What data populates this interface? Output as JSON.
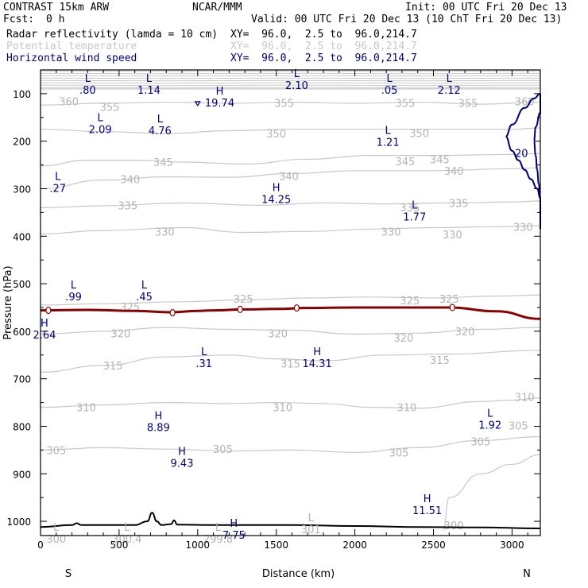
{
  "header": {
    "model": "CONTRAST 15km ARW",
    "org": "NCAR/MMM",
    "init": "Init: 00 UTC Fri 20 Dec 13",
    "fcst_label": "Fcst:",
    "fcst_value": "0 h",
    "valid": "Valid: 00 UTC Fri 20 Dec 13 (10 ChT Fri 20 Dec 13)"
  },
  "legend": [
    {
      "label": "Radar reflectivity (lamda = 10 cm)",
      "xy": "XY=  96.0,  2.5 to  96.0,214.7",
      "color": "#8b0000"
    },
    {
      "label": "Potential temperature",
      "xy": "XY=  96.0,  2.5 to  96.0,214.7",
      "color": "#c8c8c8"
    },
    {
      "label": "Horizontal wind speed",
      "xy": "XY=  96.0,  2.5 to  96.0,214.7",
      "color": "#00007a"
    }
  ],
  "chart_data": {
    "type": "cross-section contour",
    "xlabel": "Distance (km)",
    "ylabel": "Pressure (hPa)",
    "xlim": [
      0,
      3180
    ],
    "ylim": [
      1030,
      50
    ],
    "x_ticks": [
      "0",
      "500",
      "1000",
      "1500",
      "2000",
      "2500",
      "3000"
    ],
    "x_tick_values": [
      0,
      500,
      1000,
      1500,
      2000,
      2500,
      3000
    ],
    "y_ticks": [
      "100",
      "200",
      "300",
      "400",
      "500",
      "600",
      "700",
      "800",
      "900",
      "1000"
    ],
    "y_tick_values": [
      100,
      200,
      300,
      400,
      500,
      600,
      700,
      800,
      900,
      1000
    ],
    "endpoints": {
      "left": "S",
      "right": "N"
    },
    "theta_contours": [
      {
        "label": "360",
        "points": [
          [
            0,
            90
          ],
          [
            3180,
            90
          ]
        ],
        "label_pos": [
          180,
          116
        ]
      },
      {
        "label": "355",
        "points": [
          [
            0,
            124
          ],
          [
            400,
            120
          ],
          [
            800,
            118
          ],
          [
            1200,
            120
          ],
          [
            1600,
            118
          ],
          [
            2000,
            120
          ],
          [
            2400,
            118
          ],
          [
            2800,
            122
          ],
          [
            3180,
            118
          ]
        ],
        "label_pos": [
          440,
          128
        ]
      },
      {
        "label": "350",
        "points": [
          [
            0,
            175
          ],
          [
            400,
            180
          ],
          [
            800,
            184
          ],
          [
            1200,
            178
          ],
          [
            1600,
            175
          ],
          [
            2000,
            175
          ],
          [
            2400,
            175
          ],
          [
            3000,
            175
          ],
          [
            3180,
            172
          ]
        ],
        "label_pos": [
          1500,
          184
        ]
      },
      {
        "label": "345",
        "points": [
          [
            0,
            252
          ],
          [
            300,
            240
          ],
          [
            600,
            240
          ],
          [
            900,
            244
          ],
          [
            1300,
            248
          ],
          [
            1700,
            238
          ],
          [
            2100,
            230
          ],
          [
            2500,
            230
          ],
          [
            3000,
            228
          ],
          [
            3180,
            226
          ]
        ],
        "label_pos": [
          780,
          244
        ]
      },
      {
        "label": "340",
        "points": [
          [
            0,
            300
          ],
          [
            400,
            282
          ],
          [
            800,
            275
          ],
          [
            1200,
            276
          ],
          [
            1600,
            268
          ],
          [
            2000,
            262
          ],
          [
            2500,
            262
          ],
          [
            3000,
            258
          ],
          [
            3180,
            256
          ]
        ],
        "label_pos": [
          570,
          280
        ]
      },
      {
        "label": "335",
        "points": [
          [
            0,
            340
          ],
          [
            400,
            336
          ],
          [
            900,
            330
          ],
          [
            1400,
            335
          ],
          [
            1800,
            330
          ],
          [
            2200,
            332
          ],
          [
            2600,
            330
          ],
          [
            3000,
            328
          ],
          [
            3180,
            326
          ]
        ],
        "label_pos": [
          555,
          335
        ]
      },
      {
        "label": "330",
        "points": [
          [
            0,
            395
          ],
          [
            400,
            388
          ],
          [
            900,
            382
          ],
          [
            1300,
            392
          ],
          [
            1700,
            390
          ],
          [
            2100,
            385
          ],
          [
            2500,
            382
          ],
          [
            2900,
            380
          ],
          [
            3180,
            378
          ]
        ],
        "label_pos": [
          790,
          390
        ]
      },
      {
        "label": "325",
        "points": [
          [
            0,
            545
          ],
          [
            400,
            542
          ],
          [
            900,
            538
          ],
          [
            1300,
            534
          ],
          [
            1700,
            530
          ],
          [
            2100,
            528
          ],
          [
            2500,
            530
          ],
          [
            2900,
            526
          ],
          [
            3180,
            524
          ]
        ],
        "label_pos": [
          1290,
          532
        ]
      },
      {
        "label": "320",
        "points": [
          [
            0,
            606
          ],
          [
            400,
            600
          ],
          [
            800,
            592
          ],
          [
            1200,
            596
          ],
          [
            1600,
            598
          ],
          [
            2000,
            606
          ],
          [
            2400,
            604
          ],
          [
            2800,
            596
          ],
          [
            3180,
            592
          ]
        ],
        "label_pos": [
          510,
          604
        ]
      },
      {
        "label": "315",
        "points": [
          [
            0,
            686
          ],
          [
            400,
            672
          ],
          [
            800,
            654
          ],
          [
            1200,
            650
          ],
          [
            1500,
            658
          ],
          [
            1800,
            662
          ],
          [
            2200,
            650
          ],
          [
            2600,
            648
          ],
          [
            3180,
            640
          ]
        ],
        "label_pos": [
          460,
          672
        ]
      },
      {
        "label": "310",
        "points": [
          [
            0,
            760
          ],
          [
            400,
            755
          ],
          [
            800,
            750
          ],
          [
            1200,
            752
          ],
          [
            1500,
            750
          ],
          [
            1800,
            752
          ],
          [
            2100,
            760
          ],
          [
            2400,
            762
          ],
          [
            2800,
            748
          ],
          [
            3000,
            745
          ],
          [
            3180,
            740
          ]
        ],
        "label_pos": [
          290,
          760
        ]
      },
      {
        "label": "305",
        "points": [
          [
            0,
            850
          ],
          [
            400,
            845
          ],
          [
            800,
            848
          ],
          [
            1200,
            852
          ],
          [
            1600,
            850
          ],
          [
            2000,
            855
          ],
          [
            2400,
            845
          ],
          [
            2800,
            830
          ],
          [
            3180,
            822
          ]
        ],
        "label_pos": [
          100,
          850
        ]
      },
      {
        "label": "300",
        "points": [
          [
            2560,
            1020
          ],
          [
            2600,
            950
          ],
          [
            2800,
            900
          ],
          [
            3000,
            880
          ],
          [
            3180,
            860
          ]
        ],
        "label_pos": [
          2630,
          1008
        ]
      }
    ],
    "theta_extra_labels": [
      {
        "label": "350",
        "pos": [
          2410,
          183
        ]
      },
      {
        "label": "345",
        "pos": [
          2320,
          242
        ]
      },
      {
        "label": "345",
        "pos": [
          2540,
          238
        ]
      },
      {
        "label": "340",
        "pos": [
          1580,
          273
        ]
      },
      {
        "label": "340",
        "pos": [
          2630,
          262
        ]
      },
      {
        "label": "335",
        "pos": [
          2350,
          339
        ]
      },
      {
        "label": "335",
        "pos": [
          2660,
          330
        ]
      },
      {
        "label": "330",
        "pos": [
          2230,
          390
        ]
      },
      {
        "label": "330",
        "pos": [
          2620,
          396
        ]
      },
      {
        "label": "330",
        "pos": [
          3070,
          380
        ]
      },
      {
        "label": "325",
        "pos": [
          570,
          548
        ]
      },
      {
        "label": "325",
        "pos": [
          2350,
          535
        ]
      },
      {
        "label": "325",
        "pos": [
          2600,
          532
        ]
      },
      {
        "label": "320",
        "pos": [
          1510,
          604
        ]
      },
      {
        "label": "320",
        "pos": [
          2310,
          614
        ]
      },
      {
        "label": "320",
        "pos": [
          2700,
          600
        ]
      },
      {
        "label": "315",
        "pos": [
          1590,
          668
        ]
      },
      {
        "label": "315",
        "pos": [
          2540,
          660
        ]
      },
      {
        "label": "310",
        "pos": [
          1540,
          760
        ]
      },
      {
        "label": "310",
        "pos": [
          2330,
          760
        ]
      },
      {
        "label": "310",
        "pos": [
          3080,
          738
        ]
      },
      {
        "label": "305",
        "pos": [
          1160,
          848
        ]
      },
      {
        "label": "305",
        "pos": [
          2280,
          855
        ]
      },
      {
        "label": "305",
        "pos": [
          2800,
          832
        ]
      },
      {
        "label": "305",
        "pos": [
          3040,
          798
        ]
      },
      {
        "label": "355",
        "pos": [
          1550,
          119
        ]
      },
      {
        "label": "355",
        "pos": [
          2320,
          119
        ]
      },
      {
        "label": "355",
        "pos": [
          2720,
          119
        ]
      },
      {
        "label": "360",
        "pos": [
          3080,
          116
        ]
      }
    ],
    "radar_line": {
      "points": [
        [
          0,
          556
        ],
        [
          300,
          555
        ],
        [
          600,
          557
        ],
        [
          830,
          560
        ],
        [
          1000,
          557
        ],
        [
          1100,
          556
        ],
        [
          1300,
          554
        ],
        [
          1500,
          553
        ],
        [
          1700,
          551
        ],
        [
          2000,
          550
        ],
        [
          2300,
          550
        ],
        [
          2600,
          550
        ],
        [
          2900,
          558
        ],
        [
          3180,
          574
        ]
      ]
    },
    "radar_markers": [
      {
        "x": 50,
        "y": 556
      },
      {
        "x": 840,
        "y": 561
      },
      {
        "x": 1270,
        "y": 554
      },
      {
        "x": 1630,
        "y": 551
      },
      {
        "x": 2620,
        "y": 550
      }
    ],
    "wind_contour": {
      "label": "20",
      "points": [
        [
          3180,
          100
        ],
        [
          3140,
          110
        ],
        [
          3080,
          130
        ],
        [
          3000,
          165
        ],
        [
          2960,
          190
        ],
        [
          3000,
          220
        ],
        [
          3040,
          240
        ],
        [
          3080,
          260
        ],
        [
          3120,
          280
        ],
        [
          3160,
          300
        ],
        [
          3180,
          320
        ]
      ],
      "label_pos": [
        3060,
        225
      ]
    },
    "wind_contour_2": {
      "points": [
        [
          3180,
          100
        ],
        [
          3180,
          140
        ],
        [
          3150,
          170
        ],
        [
          3140,
          200
        ],
        [
          3150,
          230
        ],
        [
          3160,
          260
        ],
        [
          3170,
          290
        ],
        [
          3180,
          320
        ],
        [
          3180,
          360
        ],
        [
          3180,
          385
        ]
      ]
    },
    "surface": [
      [
        0,
        1012
      ],
      [
        200,
        1008
      ],
      [
        230,
        1004
      ],
      [
        260,
        1008
      ],
      [
        400,
        1008
      ],
      [
        600,
        1008
      ],
      [
        680,
        1000
      ],
      [
        710,
        982
      ],
      [
        740,
        1000
      ],
      [
        770,
        1008
      ],
      [
        830,
        1006
      ],
      [
        850,
        998
      ],
      [
        870,
        1007
      ],
      [
        1100,
        1008
      ],
      [
        1600,
        1008
      ],
      [
        2000,
        1010
      ],
      [
        2400,
        1012
      ],
      [
        2800,
        1013
      ],
      [
        3180,
        1015
      ]
    ],
    "labels_L": [
      {
        "text": "L",
        "value": ".80",
        "x": 300,
        "p": 75
      },
      {
        "text": "L",
        "value": "1.14",
        "x": 690,
        "p": 75
      },
      {
        "text": "L",
        "value": "2.10",
        "x": 1630,
        "p": 65
      },
      {
        "text": "L",
        "value": ".05",
        "x": 2220,
        "p": 75
      },
      {
        "text": "L",
        "value": "2.12",
        "x": 2600,
        "p": 75
      },
      {
        "text": "L",
        "value": "2.09",
        "x": 380,
        "p": 158
      },
      {
        "text": "L",
        "value": "4.76",
        "x": 760,
        "p": 160
      },
      {
        "text": "L",
        "value": "1.21",
        "x": 2210,
        "p": 185
      },
      {
        "text": "L",
        "value": ".27",
        "x": 110,
        "p": 282
      },
      {
        "text": "L",
        "value": "1.77",
        "x": 2380,
        "p": 342
      },
      {
        "text": "L",
        "value": ".99",
        "x": 210,
        "p": 510
      },
      {
        "text": "L",
        "value": ".45",
        "x": 660,
        "p": 510
      },
      {
        "text": "L",
        "value": ".31",
        "x": 1040,
        "p": 650
      },
      {
        "text": "L",
        "value": "1.92",
        "x": 2860,
        "p": 780
      }
    ],
    "labels_H": [
      {
        "text": "H",
        "value": "19.74",
        "x": 1140,
        "p": 102
      },
      {
        "text": "H",
        "value": "14.25",
        "x": 1500,
        "p": 305
      },
      {
        "text": "H",
        "value": "2.64",
        "x": 25,
        "p": 590
      },
      {
        "text": "H",
        "value": "14.31",
        "x": 1760,
        "p": 650
      },
      {
        "text": "H",
        "value": "8.89",
        "x": 750,
        "p": 785
      },
      {
        "text": "H",
        "value": "9.43",
        "x": 900,
        "p": 860
      },
      {
        "text": "H",
        "value": "11.51",
        "x": 2460,
        "p": 960
      },
      {
        "text": "H",
        "value": "7.75",
        "x": 1230,
        "p": 1012
      }
    ],
    "labels_gray": [
      {
        "text": "L",
        "value": "300",
        "x": 100,
        "p": 1020
      },
      {
        "text": "L",
        "value": "300.4",
        "x": 550,
        "p": 1020
      },
      {
        "text": "L",
        "value": "299.8",
        "x": 1130,
        "p": 1020
      },
      {
        "text": "L",
        "value": "301",
        "x": 1720,
        "p": 1000
      }
    ]
  }
}
